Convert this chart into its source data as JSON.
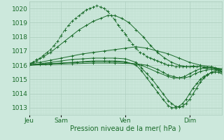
{
  "background_color": "#cce8dc",
  "grid_color_major": "#aaccbb",
  "grid_color_minor": "#bbddcc",
  "line_color": "#1a6b2a",
  "xlabel": "Pression niveau de la mer( hPa )",
  "ylim": [
    1012.5,
    1020.5
  ],
  "yticks": [
    1013,
    1014,
    1015,
    1016,
    1017,
    1018,
    1019,
    1020
  ],
  "xlim": [
    0,
    108
  ],
  "xtick_day_positions": [
    0,
    18,
    54,
    90
  ],
  "xtick_day_labels": [
    "Jeu",
    "Sam",
    "Ven",
    "Dim"
  ],
  "lines": [
    {
      "x": [
        0,
        2,
        4,
        6,
        8,
        10,
        12,
        14,
        16,
        18,
        20,
        22,
        24,
        26,
        28,
        30,
        32,
        34,
        36,
        38,
        40,
        42,
        44,
        46,
        48,
        50,
        52,
        54,
        56,
        58,
        60,
        62,
        64,
        66,
        68,
        70,
        72,
        74,
        76,
        78,
        80,
        82,
        84,
        86,
        88,
        90,
        92,
        94,
        96,
        98,
        100,
        102,
        104,
        106,
        108
      ],
      "y": [
        1016.1,
        1016.2,
        1016.4,
        1016.5,
        1016.7,
        1016.9,
        1017.1,
        1017.4,
        1017.7,
        1018.1,
        1018.5,
        1018.8,
        1019.1,
        1019.3,
        1019.5,
        1019.7,
        1019.9,
        1020.0,
        1020.1,
        1020.2,
        1020.1,
        1020.0,
        1019.8,
        1019.5,
        1019.2,
        1018.8,
        1018.5,
        1018.2,
        1017.8,
        1017.5,
        1017.2,
        1016.9,
        1016.8,
        1016.6,
        1016.5,
        1016.4,
        1016.3,
        1016.2,
        1016.1,
        1016.0,
        1016.0,
        1015.9,
        1015.9,
        1015.9,
        1015.9,
        1015.9,
        1015.95,
        1015.9,
        1015.9,
        1015.85,
        1015.8,
        1015.8,
        1015.75,
        1015.7,
        1015.7
      ],
      "style": "--",
      "marker": "+"
    },
    {
      "x": [
        0,
        4,
        8,
        12,
        16,
        20,
        24,
        28,
        32,
        36,
        40,
        44,
        48,
        52,
        56,
        60,
        64,
        68,
        72,
        76,
        80,
        84,
        88,
        92,
        96,
        100,
        104,
        108
      ],
      "y": [
        1016.1,
        1016.3,
        1016.6,
        1016.9,
        1017.3,
        1017.7,
        1018.1,
        1018.5,
        1018.8,
        1019.1,
        1019.3,
        1019.5,
        1019.5,
        1019.3,
        1019.0,
        1018.5,
        1018.0,
        1017.4,
        1016.9,
        1016.5,
        1016.2,
        1016.0,
        1015.9,
        1015.9,
        1015.9,
        1015.85,
        1015.8,
        1015.75
      ],
      "style": "-",
      "marker": "+"
    },
    {
      "x": [
        0,
        6,
        12,
        18,
        24,
        30,
        36,
        42,
        48,
        54,
        60,
        66,
        72,
        78,
        84,
        90,
        96,
        102,
        108
      ],
      "y": [
        1016.1,
        1016.2,
        1016.35,
        1016.5,
        1016.65,
        1016.8,
        1016.9,
        1017.0,
        1017.1,
        1017.2,
        1017.3,
        1017.2,
        1017.0,
        1016.8,
        1016.5,
        1016.2,
        1016.0,
        1015.9,
        1015.7
      ],
      "style": "-",
      "marker": "+"
    },
    {
      "x": [
        0,
        6,
        12,
        18,
        24,
        30,
        36,
        42,
        48,
        54,
        60,
        63,
        66,
        69,
        72,
        75,
        78,
        80,
        82,
        84,
        86,
        88,
        90,
        92,
        94,
        96,
        98,
        100,
        102,
        104,
        106,
        108
      ],
      "y": [
        1016.0,
        1016.1,
        1016.2,
        1016.3,
        1016.4,
        1016.45,
        1016.5,
        1016.5,
        1016.5,
        1016.45,
        1016.2,
        1015.8,
        1015.4,
        1015.0,
        1014.5,
        1014.0,
        1013.5,
        1013.3,
        1013.1,
        1013.05,
        1013.1,
        1013.3,
        1013.6,
        1014.0,
        1014.4,
        1014.8,
        1015.1,
        1015.3,
        1015.5,
        1015.6,
        1015.6,
        1015.5
      ],
      "style": "-",
      "marker": "+"
    },
    {
      "x": [
        0,
        6,
        12,
        18,
        24,
        30,
        36,
        42,
        48,
        54,
        60,
        63,
        66,
        69,
        72,
        75,
        78,
        80,
        82,
        84,
        86,
        88,
        90,
        92,
        94,
        96,
        98,
        100,
        102,
        104,
        106,
        108
      ],
      "y": [
        1016.0,
        1016.05,
        1016.1,
        1016.15,
        1016.2,
        1016.25,
        1016.3,
        1016.3,
        1016.3,
        1016.25,
        1016.0,
        1015.6,
        1015.1,
        1014.6,
        1014.1,
        1013.6,
        1013.15,
        1013.0,
        1013.0,
        1013.1,
        1013.3,
        1013.6,
        1014.0,
        1014.4,
        1014.7,
        1015.0,
        1015.2,
        1015.35,
        1015.45,
        1015.5,
        1015.5,
        1015.4
      ],
      "style": "-",
      "marker": "+"
    },
    {
      "x": [
        0,
        9,
        18,
        27,
        36,
        45,
        54,
        63,
        72,
        78,
        81,
        84,
        87,
        90,
        93,
        96,
        99,
        102,
        105,
        108
      ],
      "y": [
        1016.05,
        1016.1,
        1016.15,
        1016.2,
        1016.25,
        1016.25,
        1016.2,
        1016.0,
        1015.5,
        1015.2,
        1015.1,
        1015.1,
        1015.2,
        1015.4,
        1015.6,
        1015.75,
        1015.8,
        1015.8,
        1015.75,
        1015.6
      ],
      "style": "-",
      "marker": "+"
    },
    {
      "x": [
        0,
        12,
        24,
        36,
        48,
        60,
        66,
        72,
        75,
        78,
        81,
        84,
        87,
        90,
        93,
        96,
        99,
        102,
        105,
        108
      ],
      "y": [
        1016.0,
        1016.05,
        1016.1,
        1016.15,
        1016.15,
        1016.1,
        1016.0,
        1015.7,
        1015.5,
        1015.3,
        1015.2,
        1015.1,
        1015.1,
        1015.2,
        1015.4,
        1015.55,
        1015.65,
        1015.7,
        1015.7,
        1015.55
      ],
      "style": "-",
      "marker": "+"
    }
  ]
}
